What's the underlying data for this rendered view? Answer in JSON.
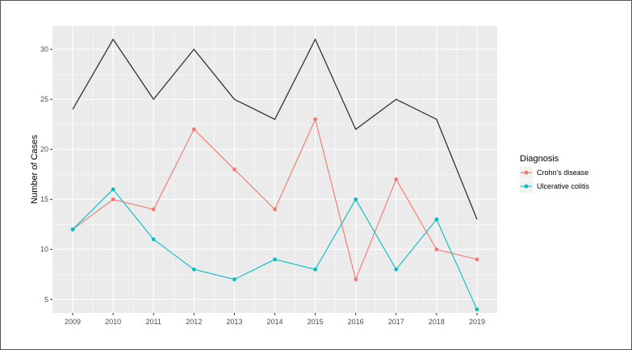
{
  "chart_data": {
    "type": "line",
    "title": "",
    "xlabel": "",
    "ylabel": "Number of Cases",
    "x": [
      2009,
      2010,
      2011,
      2012,
      2013,
      2014,
      2015,
      2016,
      2017,
      2018,
      2019
    ],
    "x_tick_labels": [
      "2009",
      "2010",
      "2011",
      "2012",
      "2013",
      "2014",
      "2015",
      "2016",
      "2017",
      "2018",
      "2019"
    ],
    "y_ticks": [
      5,
      10,
      15,
      20,
      25,
      30
    ],
    "y_tick_labels": [
      "5",
      "10",
      "15",
      "20",
      "25",
      "30"
    ],
    "xlim": [
      2008.5,
      2019.5
    ],
    "ylim": [
      3.65,
      32.35
    ],
    "grid": true,
    "legend": {
      "title": "Diagnosis",
      "placement": "right",
      "entries": [
        "Crohn's disease",
        "Ulcerative colitis"
      ]
    },
    "series": [
      {
        "name": "",
        "color": "#333333",
        "markers": false,
        "values": [
          24,
          31,
          25,
          30,
          25,
          23,
          31,
          22,
          25,
          23,
          13
        ]
      },
      {
        "name": "Crohn's disease",
        "color": "#F8766D",
        "markers": true,
        "values": [
          12,
          15,
          14,
          22,
          18,
          14,
          23,
          7,
          17,
          10,
          9
        ]
      },
      {
        "name": "Ulcerative colitis",
        "color": "#00BFC4",
        "markers": true,
        "values": [
          12,
          16,
          11,
          8,
          7,
          9,
          8,
          15,
          8,
          13,
          4
        ]
      }
    ],
    "panel_background": "#EBEBEB",
    "grid_color": "#FFFFFF"
  }
}
